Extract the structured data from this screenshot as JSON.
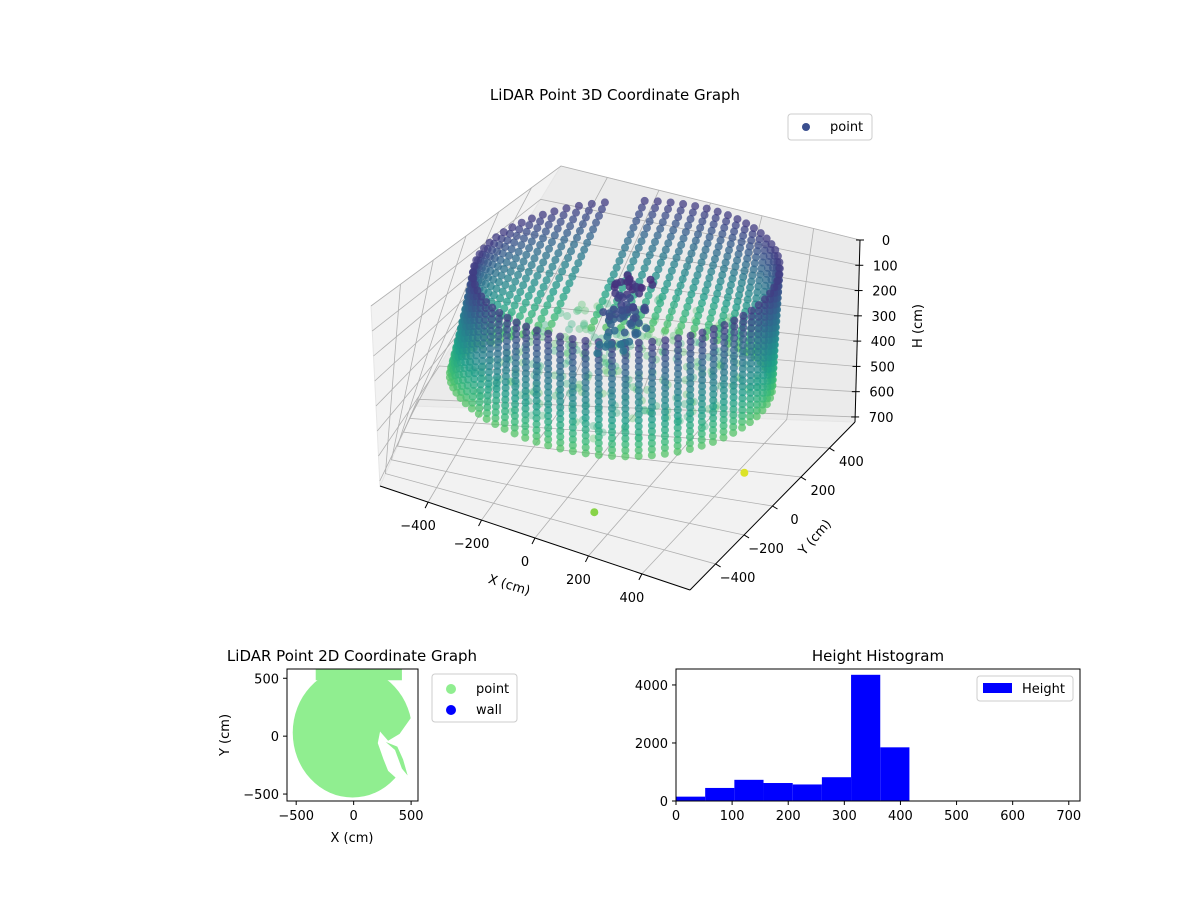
{
  "chart_data": [
    {
      "type": "scatter",
      "title": "LiDAR Point 3D Coordinate Graph",
      "xlabel": "X (cm)",
      "ylabel": "Y (cm)",
      "zlabel": "H (cm)",
      "x_ticks": [
        -400,
        -200,
        0,
        200,
        400
      ],
      "y_ticks": [
        -400,
        -200,
        0,
        200,
        400
      ],
      "z_ticks": [
        0,
        100,
        200,
        300,
        400,
        500,
        600,
        700
      ],
      "xlim": [
        -580,
        580
      ],
      "ylim": [
        -580,
        580
      ],
      "zlim": [
        0,
        720
      ],
      "z_inverted": true,
      "legend": [
        {
          "label": "point",
          "color": "#3b4f8f"
        }
      ],
      "legend_position": "upper-right",
      "colormap": "viridis",
      "grid": true
    },
    {
      "type": "scatter",
      "title": "LiDAR Point 2D Coordinate Graph",
      "xlabel": "X (cm)",
      "ylabel": "Y (cm)",
      "x_ticks": [
        -500,
        0,
        500
      ],
      "y_ticks": [
        -500,
        0,
        500
      ],
      "xlim": [
        -580,
        560
      ],
      "ylim": [
        -560,
        580
      ],
      "series": [
        {
          "name": "point",
          "color": "#90ee90"
        },
        {
          "name": "wall",
          "color": "#0000ff"
        }
      ],
      "legend_position": "outside-right",
      "grid": false
    },
    {
      "type": "bar",
      "title": "Height Histogram",
      "x_ticks": [
        0,
        100,
        200,
        300,
        400,
        500,
        600,
        700
      ],
      "y_ticks": [
        0,
        2000,
        4000
      ],
      "xlim": [
        0,
        720
      ],
      "ylim": [
        0,
        4550
      ],
      "bin_edges": [
        0,
        52,
        104,
        156,
        208,
        260,
        312,
        364,
        416
      ],
      "values": [
        150,
        450,
        730,
        620,
        570,
        820,
        4350,
        1850
      ],
      "series": [
        {
          "name": "Height",
          "color": "#0000ff"
        }
      ],
      "legend_position": "upper-right",
      "grid": false
    }
  ]
}
